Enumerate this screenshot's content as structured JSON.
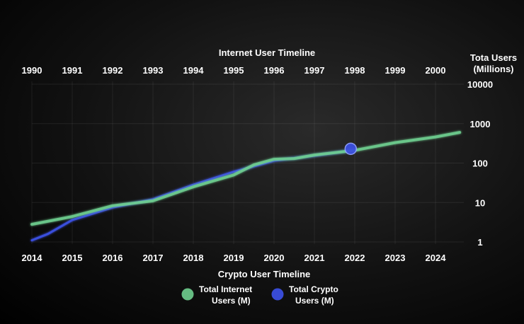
{
  "chart_data": {
    "type": "line",
    "title": "Internet User Timeline",
    "top_axis": {
      "label": "Internet User Timeline",
      "ticks": [
        "1990",
        "1991",
        "1992",
        "1993",
        "1994",
        "1995",
        "1996",
        "1997",
        "1998",
        "1999",
        "2000"
      ]
    },
    "bottom_axis": {
      "label": "Crypto User Timeline",
      "ticks": [
        "2014",
        "2015",
        "2016",
        "2017",
        "2018",
        "2019",
        "2020",
        "2021",
        "2022",
        "2023",
        "2024"
      ]
    },
    "y_axis": {
      "label_lines": [
        "Tota Users",
        "(Millions)"
      ],
      "scale": "log",
      "ylim": [
        1,
        10000
      ],
      "ticks": [
        1,
        10,
        100,
        1000,
        10000
      ],
      "tick_labels": [
        "1",
        "10",
        "100",
        "1000",
        "10000"
      ]
    },
    "grid": true,
    "legend_position": "bottom-center",
    "series": [
      {
        "name": "Total Internet Users (M)",
        "color": "#6fcf8f",
        "axis": "top",
        "x": [
          1990,
          1991,
          1992,
          1993,
          1994,
          1995,
          1995.5,
          1996,
          1996.5,
          1997,
          1998,
          1999,
          2000,
          2000.6
        ],
        "y": [
          2.8,
          4.4,
          8.3,
          11,
          25,
          50,
          90,
          125,
          130,
          160,
          210,
          330,
          460,
          600
        ]
      },
      {
        "name": "Total Crypto Users (M)",
        "color": "#3b4fe0",
        "axis": "bottom",
        "x": [
          2014,
          2014.4,
          2015,
          2016,
          2017,
          2018,
          2019,
          2020,
          2021,
          2022
        ],
        "y": [
          1.1,
          1.6,
          3.6,
          7.5,
          12,
          28,
          60,
          115,
          155,
          215
        ],
        "marker": {
          "x": 2021.9,
          "y": 230
        }
      }
    ]
  }
}
